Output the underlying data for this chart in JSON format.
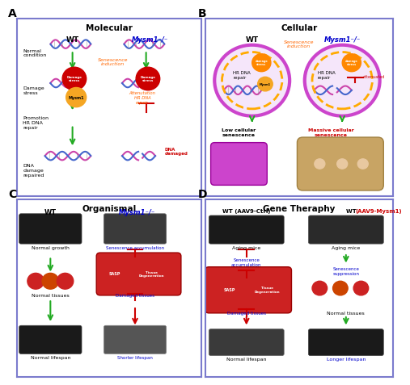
{
  "bg_color": "#ffffff",
  "panel_border_color": "#7b7bcd",
  "panel_A": {
    "label": "A",
    "title": "Molecular",
    "wt_label": "WT",
    "ko_label": "Mysm1⁻/⁻",
    "center_text": "Senescence\ninduction",
    "center_text_color": "#ff6600",
    "mysm1_label": "Mysm1",
    "mysm1_color": "#f5a623",
    "damage_stress_color": "#cc0000",
    "attenuation_text": "Attenutation\nHR DNA\nrepair",
    "attenuation_color": "#ff6600",
    "dna_damaged_text": "DNA\ndamaged",
    "dna_damaged_color": "#cc0000",
    "arrow_color_green": "#22aa22",
    "arrow_color_red": "#cc0000"
  },
  "panel_B": {
    "label": "B",
    "title": "Cellular",
    "wt_label": "WT",
    "ko_label": "Mysm1⁻/⁻",
    "senescence_induction": "Senescence\ninduction",
    "senescence_color": "#ff6600",
    "wt_bottom_text": "Low cellular\nsenescence",
    "ko_bottom_text": "Massive cellular\nsenescence",
    "ko_bottom_color": "#cc0000",
    "hr_dna_repair": "HR DNA\nrepair",
    "attenuated": "attenuated",
    "attenuated_color": "#cc0000",
    "arrow_color_green": "#22aa22"
  },
  "panel_C": {
    "label": "C",
    "title": "Organismal",
    "wt_label": "WT",
    "ko_label": "Mysm1⁻/⁻",
    "wt_steps": [
      "Normal growth",
      "Normal tissues",
      "Normal lifespan"
    ],
    "ko_steps": [
      "Senescence accumulation",
      "Damaged tissues",
      "Shorter lifespan"
    ],
    "ko_step_colors": [
      "#0000cc",
      "#0000cc",
      "#0000cc"
    ],
    "arrow_green": "#22aa22",
    "arrow_red": "#cc0000"
  },
  "panel_D": {
    "label": "D",
    "title": "Gene Theraphy",
    "wt_ctrl_label": "WT (AAV9-Ctrl)",
    "wt_mysm1_label": "WT (AAV9-Mysm1)",
    "wt_mysm1_color": "#cc0000",
    "ctrl_steps": [
      "Aging mice",
      "Senescence\naccumulation",
      "Damaged tissues",
      "Normal lifespan"
    ],
    "mysm1_steps": [
      "Aging mice",
      "Senescence\nsuppression",
      "Normal tissues",
      "Longer lifespan"
    ],
    "mysm1_step_colors": [
      "#000000",
      "#0000cc",
      "#000000",
      "#0000cc"
    ],
    "ctrl_step_colors": [
      "#000000",
      "#0000cc",
      "#0000cc",
      "#000000"
    ],
    "arrow_green": "#22aa22",
    "arrow_red": "#cc0000"
  }
}
